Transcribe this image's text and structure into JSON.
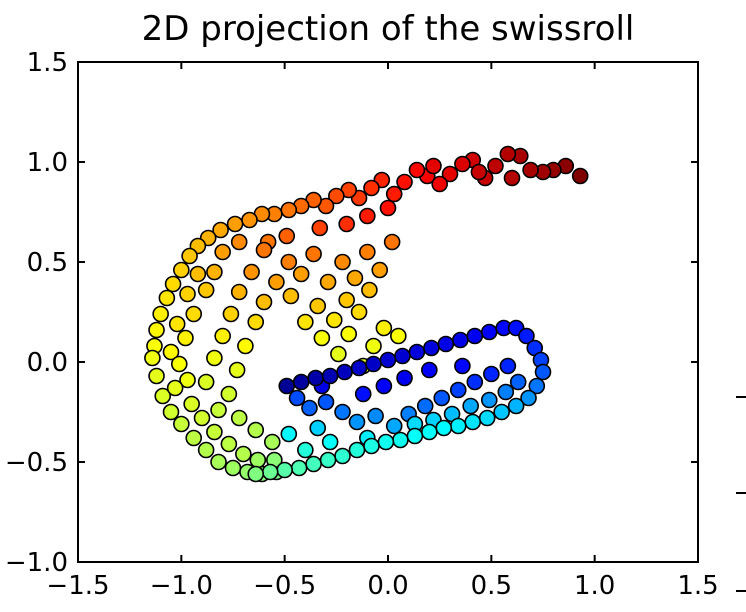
{
  "chart_data": {
    "type": "scatter",
    "title": "2D projection of the swissroll",
    "xlabel": "",
    "ylabel": "",
    "xlim": [
      -1.5,
      1.5
    ],
    "ylim": [
      -1.0,
      1.5
    ],
    "x_ticks": [
      -1.5,
      -1.0,
      -0.5,
      0.0,
      0.5,
      1.0,
      1.5
    ],
    "y_ticks": [
      -1.0,
      -0.5,
      0.0,
      0.5,
      1.0,
      1.5
    ],
    "x_tick_labels": [
      "−1.5",
      "−1.0",
      "−0.5",
      "0.0",
      "0.5",
      "1.0",
      "1.5"
    ],
    "y_tick_labels": [
      "−1.0",
      "−0.5",
      "0.0",
      "0.5",
      "1.0",
      "1.5"
    ],
    "colormap": "jet",
    "grid": false,
    "legend": "none",
    "marker_edge_color": "#000000",
    "points_outer_arc": [
      {
        "x": 0.93,
        "y": 0.93,
        "t": 1.0
      },
      {
        "x": 0.86,
        "y": 0.98,
        "t": 0.99
      },
      {
        "x": 0.8,
        "y": 0.96,
        "t": 0.98
      },
      {
        "x": 0.75,
        "y": 0.95,
        "t": 0.97
      },
      {
        "x": 0.69,
        "y": 0.96,
        "t": 0.96
      },
      {
        "x": 0.64,
        "y": 1.03,
        "t": 0.96
      },
      {
        "x": 0.58,
        "y": 1.04,
        "t": 0.95
      },
      {
        "x": 0.52,
        "y": 0.98,
        "t": 0.94
      },
      {
        "x": 0.47,
        "y": 0.92,
        "t": 0.93
      },
      {
        "x": 0.41,
        "y": 1.01,
        "t": 0.92
      },
      {
        "x": 0.36,
        "y": 0.99,
        "t": 0.91
      },
      {
        "x": 0.3,
        "y": 0.94,
        "t": 0.9
      },
      {
        "x": 0.25,
        "y": 0.89,
        "t": 0.89
      },
      {
        "x": 0.19,
        "y": 0.93,
        "t": 0.88
      },
      {
        "x": 0.14,
        "y": 0.96,
        "t": 0.87
      },
      {
        "x": 0.08,
        "y": 0.9,
        "t": 0.86
      },
      {
        "x": 0.03,
        "y": 0.84,
        "t": 0.85
      },
      {
        "x": -0.03,
        "y": 0.91,
        "t": 0.84
      },
      {
        "x": -0.08,
        "y": 0.87,
        "t": 0.83
      },
      {
        "x": -0.14,
        "y": 0.82,
        "t": 0.82
      },
      {
        "x": -0.19,
        "y": 0.86,
        "t": 0.81
      },
      {
        "x": -0.25,
        "y": 0.83,
        "t": 0.8
      },
      {
        "x": -0.3,
        "y": 0.78,
        "t": 0.79
      },
      {
        "x": -0.36,
        "y": 0.81,
        "t": 0.78
      },
      {
        "x": -0.42,
        "y": 0.78,
        "t": 0.77
      },
      {
        "x": -0.48,
        "y": 0.76,
        "t": 0.76
      },
      {
        "x": -0.55,
        "y": 0.74,
        "t": 0.75
      },
      {
        "x": -0.61,
        "y": 0.74,
        "t": 0.74
      },
      {
        "x": -0.67,
        "y": 0.71,
        "t": 0.73
      },
      {
        "x": -0.74,
        "y": 0.69,
        "t": 0.72
      },
      {
        "x": -0.81,
        "y": 0.66,
        "t": 0.71
      },
      {
        "x": -0.87,
        "y": 0.62,
        "t": 0.7
      },
      {
        "x": -0.92,
        "y": 0.58,
        "t": 0.69
      },
      {
        "x": -0.96,
        "y": 0.53,
        "t": 0.68
      },
      {
        "x": -1.0,
        "y": 0.46,
        "t": 0.67
      },
      {
        "x": -1.04,
        "y": 0.39,
        "t": 0.66
      },
      {
        "x": -1.07,
        "y": 0.32,
        "t": 0.65
      },
      {
        "x": -1.1,
        "y": 0.24,
        "t": 0.64
      },
      {
        "x": -1.12,
        "y": 0.16,
        "t": 0.63
      },
      {
        "x": -1.13,
        "y": 0.08,
        "t": 0.62
      },
      {
        "x": -1.14,
        "y": 0.02,
        "t": 0.61
      },
      {
        "x": -1.12,
        "y": -0.07,
        "t": 0.6
      },
      {
        "x": -1.09,
        "y": -0.17,
        "t": 0.59
      },
      {
        "x": -1.05,
        "y": -0.25,
        "t": 0.58
      },
      {
        "x": -1.0,
        "y": -0.31,
        "t": 0.57
      },
      {
        "x": -0.94,
        "y": -0.38,
        "t": 0.56
      },
      {
        "x": -0.88,
        "y": -0.44,
        "t": 0.55
      },
      {
        "x": -0.82,
        "y": -0.5,
        "t": 0.54
      },
      {
        "x": -0.75,
        "y": -0.53,
        "t": 0.53
      },
      {
        "x": -0.68,
        "y": -0.55,
        "t": 0.52
      },
      {
        "x": -0.61,
        "y": -0.56,
        "t": 0.51
      },
      {
        "x": -0.54,
        "y": -0.55,
        "t": 0.5
      }
    ],
    "points_outer_band": [
      {
        "x": 0.6,
        "y": 0.92,
        "t": 0.95
      },
      {
        "x": 0.44,
        "y": 0.95,
        "t": 0.93
      },
      {
        "x": 0.22,
        "y": 0.98,
        "t": 0.9
      },
      {
        "x": 0.0,
        "y": 0.77,
        "t": 0.86
      },
      {
        "x": -0.1,
        "y": 0.73,
        "t": 0.85
      },
      {
        "x": -0.2,
        "y": 0.69,
        "t": 0.83
      },
      {
        "x": -0.33,
        "y": 0.67,
        "t": 0.81
      },
      {
        "x": -0.49,
        "y": 0.63,
        "t": 0.78
      },
      {
        "x": -0.58,
        "y": 0.6,
        "t": 0.76
      },
      {
        "x": -0.72,
        "y": 0.6,
        "t": 0.74
      },
      {
        "x": -0.8,
        "y": 0.55,
        "t": 0.72
      },
      {
        "x": -0.84,
        "y": 0.45,
        "t": 0.7
      },
      {
        "x": -0.92,
        "y": 0.44,
        "t": 0.69
      },
      {
        "x": -0.88,
        "y": 0.36,
        "t": 0.68
      },
      {
        "x": -0.97,
        "y": 0.34,
        "t": 0.67
      },
      {
        "x": -0.94,
        "y": 0.24,
        "t": 0.66
      },
      {
        "x": -1.02,
        "y": 0.19,
        "t": 0.65
      },
      {
        "x": -0.98,
        "y": 0.12,
        "t": 0.64
      },
      {
        "x": -1.05,
        "y": 0.05,
        "t": 0.63
      },
      {
        "x": -1.01,
        "y": -0.01,
        "t": 0.62
      },
      {
        "x": -0.97,
        "y": -0.09,
        "t": 0.61
      },
      {
        "x": -1.03,
        "y": -0.13,
        "t": 0.6
      },
      {
        "x": -0.95,
        "y": -0.21,
        "t": 0.59
      },
      {
        "x": -0.9,
        "y": -0.28,
        "t": 0.58
      },
      {
        "x": -0.84,
        "y": -0.35,
        "t": 0.57
      },
      {
        "x": -0.77,
        "y": -0.41,
        "t": 0.56
      },
      {
        "x": -0.7,
        "y": -0.46,
        "t": 0.55
      },
      {
        "x": -0.63,
        "y": -0.49,
        "t": 0.53
      },
      {
        "x": -0.55,
        "y": -0.49,
        "t": 0.51
      }
    ],
    "points_inner_sheet": [
      {
        "x": -0.6,
        "y": 0.56,
        "t": 0.76
      },
      {
        "x": -0.48,
        "y": 0.5,
        "t": 0.75
      },
      {
        "x": -0.36,
        "y": 0.54,
        "t": 0.76
      },
      {
        "x": -0.22,
        "y": 0.5,
        "t": 0.74
      },
      {
        "x": -0.1,
        "y": 0.55,
        "t": 0.75
      },
      {
        "x": 0.02,
        "y": 0.6,
        "t": 0.76
      },
      {
        "x": -0.66,
        "y": 0.45,
        "t": 0.73
      },
      {
        "x": -0.54,
        "y": 0.4,
        "t": 0.72
      },
      {
        "x": -0.42,
        "y": 0.44,
        "t": 0.72
      },
      {
        "x": -0.29,
        "y": 0.4,
        "t": 0.71
      },
      {
        "x": -0.16,
        "y": 0.42,
        "t": 0.71
      },
      {
        "x": -0.04,
        "y": 0.46,
        "t": 0.72
      },
      {
        "x": -0.72,
        "y": 0.35,
        "t": 0.7
      },
      {
        "x": -0.6,
        "y": 0.3,
        "t": 0.69
      },
      {
        "x": -0.47,
        "y": 0.33,
        "t": 0.69
      },
      {
        "x": -0.34,
        "y": 0.28,
        "t": 0.68
      },
      {
        "x": -0.2,
        "y": 0.31,
        "t": 0.68
      },
      {
        "x": -0.09,
        "y": 0.36,
        "t": 0.69
      },
      {
        "x": -0.76,
        "y": 0.24,
        "t": 0.67
      },
      {
        "x": -0.64,
        "y": 0.2,
        "t": 0.66
      },
      {
        "x": -0.4,
        "y": 0.2,
        "t": 0.65
      },
      {
        "x": -0.26,
        "y": 0.21,
        "t": 0.65
      },
      {
        "x": -0.14,
        "y": 0.25,
        "t": 0.66
      },
      {
        "x": -0.02,
        "y": 0.17,
        "t": 0.64
      },
      {
        "x": -0.8,
        "y": 0.13,
        "t": 0.64
      },
      {
        "x": -0.69,
        "y": 0.08,
        "t": 0.63
      },
      {
        "x": -0.32,
        "y": 0.12,
        "t": 0.62
      },
      {
        "x": -0.19,
        "y": 0.14,
        "t": 0.62
      },
      {
        "x": -0.07,
        "y": 0.08,
        "t": 0.61
      },
      {
        "x": 0.05,
        "y": 0.13,
        "t": 0.62
      },
      {
        "x": -0.84,
        "y": 0.02,
        "t": 0.61
      },
      {
        "x": -0.73,
        "y": -0.04,
        "t": 0.6
      },
      {
        "x": -0.24,
        "y": 0.04,
        "t": 0.6
      },
      {
        "x": -0.12,
        "y": -0.02,
        "t": 0.59
      },
      {
        "x": -0.88,
        "y": -0.1,
        "t": 0.59
      },
      {
        "x": -0.77,
        "y": -0.16,
        "t": 0.58
      },
      {
        "x": -0.82,
        "y": -0.24,
        "t": 0.57
      },
      {
        "x": -0.72,
        "y": -0.28,
        "t": 0.56
      },
      {
        "x": -0.64,
        "y": -0.34,
        "t": 0.55
      },
      {
        "x": -0.56,
        "y": -0.4,
        "t": 0.54
      }
    ],
    "points_inner_arc": [
      {
        "x": -0.49,
        "y": -0.12,
        "t": 0.02
      },
      {
        "x": -0.42,
        "y": -0.1,
        "t": 0.03
      },
      {
        "x": -0.35,
        "y": -0.08,
        "t": 0.04
      },
      {
        "x": -0.28,
        "y": -0.07,
        "t": 0.05
      },
      {
        "x": -0.21,
        "y": -0.05,
        "t": 0.06
      },
      {
        "x": -0.14,
        "y": -0.03,
        "t": 0.07
      },
      {
        "x": -0.07,
        "y": -0.01,
        "t": 0.07
      },
      {
        "x": 0.0,
        "y": 0.01,
        "t": 0.08
      },
      {
        "x": 0.07,
        "y": 0.03,
        "t": 0.08
      },
      {
        "x": 0.14,
        "y": 0.05,
        "t": 0.09
      },
      {
        "x": 0.21,
        "y": 0.07,
        "t": 0.09
      },
      {
        "x": 0.28,
        "y": 0.09,
        "t": 0.1
      },
      {
        "x": 0.35,
        "y": 0.11,
        "t": 0.1
      },
      {
        "x": 0.42,
        "y": 0.13,
        "t": 0.11
      },
      {
        "x": 0.49,
        "y": 0.15,
        "t": 0.12
      },
      {
        "x": 0.56,
        "y": 0.17,
        "t": 0.13
      },
      {
        "x": 0.62,
        "y": 0.17,
        "t": 0.14
      },
      {
        "x": 0.67,
        "y": 0.13,
        "t": 0.15
      },
      {
        "x": 0.71,
        "y": 0.07,
        "t": 0.17
      },
      {
        "x": 0.74,
        "y": 0.01,
        "t": 0.19
      },
      {
        "x": 0.75,
        "y": -0.05,
        "t": 0.21
      },
      {
        "x": 0.72,
        "y": -0.12,
        "t": 0.24
      },
      {
        "x": 0.68,
        "y": -0.18,
        "t": 0.27
      },
      {
        "x": 0.62,
        "y": -0.22,
        "t": 0.3
      },
      {
        "x": 0.55,
        "y": -0.25,
        "t": 0.32
      },
      {
        "x": 0.48,
        "y": -0.28,
        "t": 0.34
      },
      {
        "x": 0.41,
        "y": -0.3,
        "t": 0.35
      },
      {
        "x": 0.34,
        "y": -0.32,
        "t": 0.36
      },
      {
        "x": 0.27,
        "y": -0.33,
        "t": 0.37
      },
      {
        "x": 0.2,
        "y": -0.35,
        "t": 0.38
      },
      {
        "x": 0.13,
        "y": -0.37,
        "t": 0.38
      },
      {
        "x": 0.06,
        "y": -0.39,
        "t": 0.39
      },
      {
        "x": -0.01,
        "y": -0.4,
        "t": 0.39
      },
      {
        "x": -0.08,
        "y": -0.42,
        "t": 0.4
      },
      {
        "x": -0.15,
        "y": -0.44,
        "t": 0.41
      },
      {
        "x": -0.22,
        "y": -0.47,
        "t": 0.42
      },
      {
        "x": -0.29,
        "y": -0.49,
        "t": 0.43
      },
      {
        "x": -0.36,
        "y": -0.51,
        "t": 0.44
      },
      {
        "x": -0.43,
        "y": -0.53,
        "t": 0.45
      },
      {
        "x": -0.5,
        "y": -0.54,
        "t": 0.46
      },
      {
        "x": -0.57,
        "y": -0.55,
        "t": 0.48
      },
      {
        "x": -0.64,
        "y": -0.56,
        "t": 0.5
      }
    ],
    "points_inner_band": [
      {
        "x": -0.44,
        "y": -0.18,
        "t": 0.2
      },
      {
        "x": -0.38,
        "y": -0.23,
        "t": 0.22
      },
      {
        "x": -0.3,
        "y": -0.2,
        "t": 0.21
      },
      {
        "x": -0.22,
        "y": -0.25,
        "t": 0.24
      },
      {
        "x": -0.15,
        "y": -0.3,
        "t": 0.27
      },
      {
        "x": -0.06,
        "y": -0.27,
        "t": 0.26
      },
      {
        "x": 0.03,
        "y": -0.32,
        "t": 0.29
      },
      {
        "x": 0.1,
        "y": -0.26,
        "t": 0.25
      },
      {
        "x": 0.18,
        "y": -0.22,
        "t": 0.23
      },
      {
        "x": 0.26,
        "y": -0.18,
        "t": 0.21
      },
      {
        "x": 0.34,
        "y": -0.14,
        "t": 0.19
      },
      {
        "x": 0.42,
        "y": -0.1,
        "t": 0.17
      },
      {
        "x": 0.5,
        "y": -0.06,
        "t": 0.16
      },
      {
        "x": 0.58,
        "y": -0.02,
        "t": 0.16
      },
      {
        "x": 0.63,
        "y": -0.1,
        "t": 0.22
      },
      {
        "x": 0.57,
        "y": -0.15,
        "t": 0.25
      },
      {
        "x": 0.49,
        "y": -0.19,
        "t": 0.27
      },
      {
        "x": 0.4,
        "y": -0.22,
        "t": 0.29
      },
      {
        "x": 0.31,
        "y": -0.26,
        "t": 0.31
      },
      {
        "x": 0.22,
        "y": -0.29,
        "t": 0.33
      },
      {
        "x": 0.13,
        "y": -0.31,
        "t": 0.34
      },
      {
        "x": -0.34,
        "y": -0.33,
        "t": 0.33
      },
      {
        "x": -0.28,
        "y": -0.4,
        "t": 0.38
      },
      {
        "x": -0.4,
        "y": -0.44,
        "t": 0.41
      },
      {
        "x": -0.48,
        "y": -0.36,
        "t": 0.37
      },
      {
        "x": -0.1,
        "y": -0.38,
        "t": 0.36
      },
      {
        "x": -0.02,
        "y": -0.12,
        "t": 0.12
      },
      {
        "x": 0.08,
        "y": -0.08,
        "t": 0.11
      },
      {
        "x": -0.12,
        "y": -0.16,
        "t": 0.14
      },
      {
        "x": -0.32,
        "y": -0.12,
        "t": 0.1
      },
      {
        "x": 0.36,
        "y": -0.02,
        "t": 0.13
      },
      {
        "x": 0.2,
        "y": -0.04,
        "t": 0.12
      }
    ]
  }
}
